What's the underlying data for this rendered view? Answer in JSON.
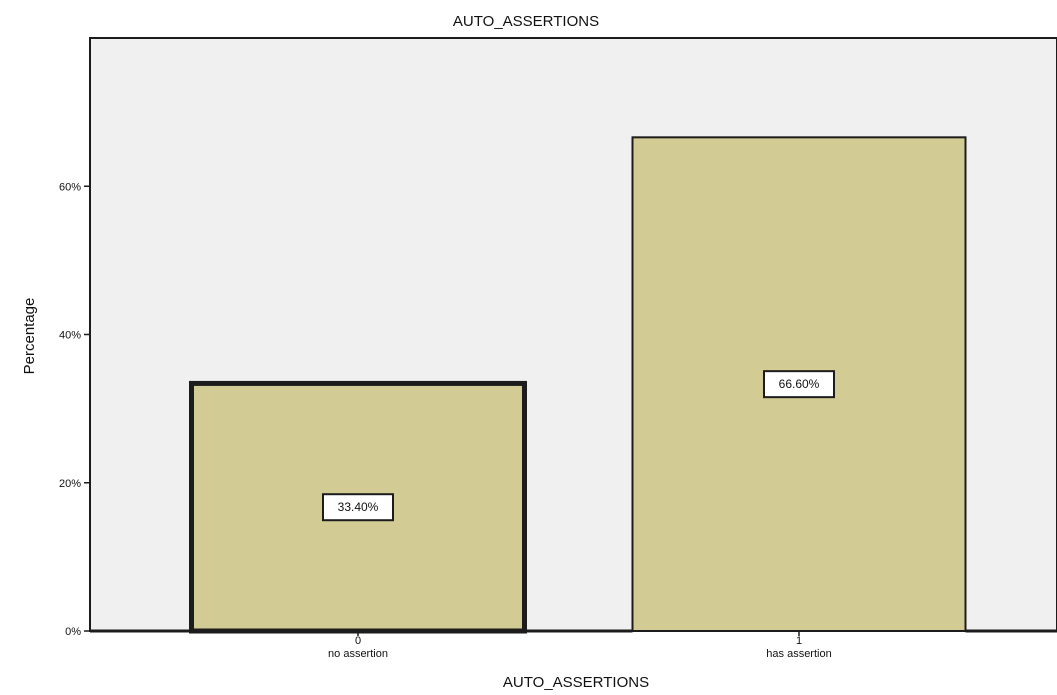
{
  "chart_data": {
    "type": "bar",
    "title": "AUTO_ASSERTIONS",
    "xlabel": "AUTO_ASSERTIONS",
    "ylabel": "Percentage",
    "categories": [
      "0\nno assertion",
      "1\nhas assertion"
    ],
    "category_codes": [
      "0",
      "1"
    ],
    "category_names": [
      "no assertion",
      "has assertion"
    ],
    "values": [
      33.4,
      66.6
    ],
    "value_labels": [
      "33.40%",
      "66.60%"
    ],
    "ylim": [
      0,
      80
    ],
    "yticks": [
      0,
      20,
      40,
      60
    ],
    "ytick_labels": [
      "0%",
      "20%",
      "40%",
      "60%"
    ],
    "grid": false,
    "legend": "none",
    "colors": {
      "plot_background": "#f0f0f0",
      "bar_fill": "#d2cc94",
      "bar_stroke": "#1c1c1c",
      "axis": "#1c1c1c"
    }
  }
}
